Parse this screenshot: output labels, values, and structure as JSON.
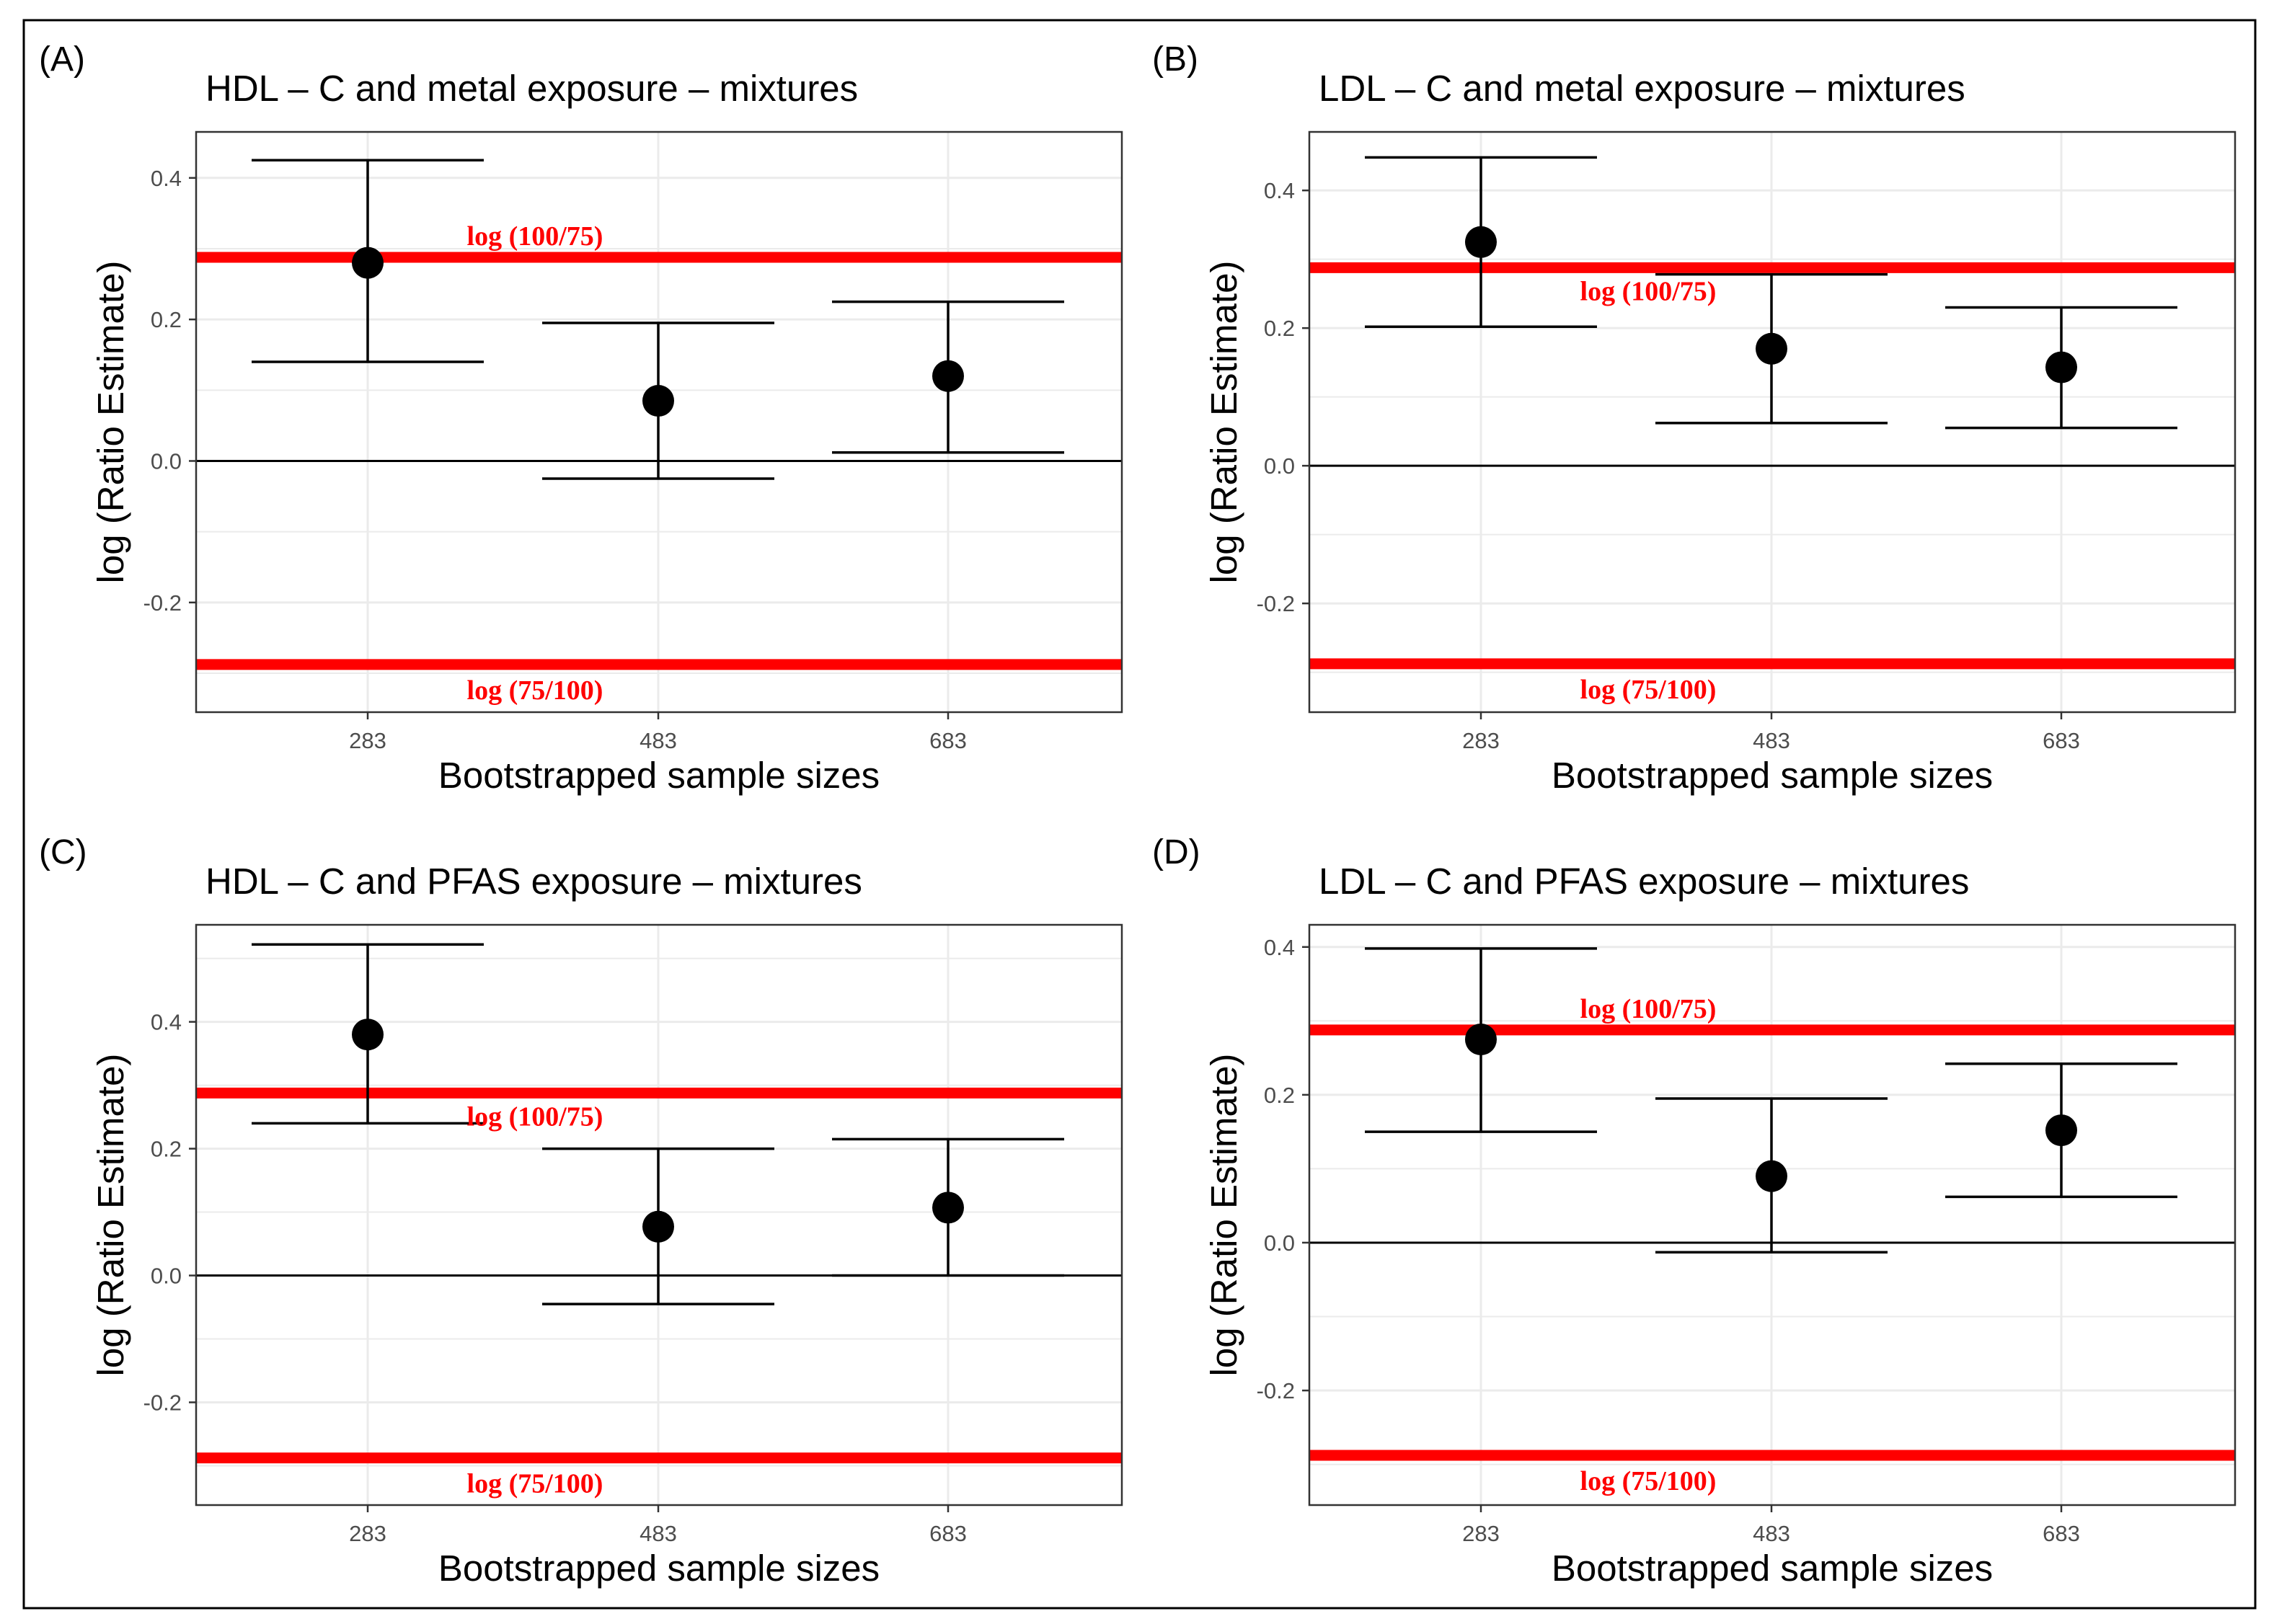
{
  "chart_data": [
    {
      "panel_label": "(A)",
      "title": "HDL – C and metal exposure – mixtures",
      "type": "scatter",
      "xlabel": "Bootstrapped sample sizes",
      "ylabel": "log (Ratio Estimate)",
      "categories": [
        "283",
        "483",
        "683"
      ],
      "estimates": [
        0.28,
        0.085,
        0.12
      ],
      "ci_lower": [
        0.14,
        -0.025,
        0.012
      ],
      "ci_upper": [
        0.425,
        0.195,
        0.225
      ],
      "yticks": [
        -0.2,
        0.0,
        0.2,
        0.4
      ],
      "ytick_labels": [
        "-0.2",
        "0.0",
        "0.2",
        "0.4"
      ],
      "ylim": [
        -0.355,
        0.465
      ],
      "upper_margin": 0.2877,
      "lower_margin": -0.2877,
      "upper_margin_label": "log (100/75)",
      "lower_margin_label": "log (75/100)",
      "upper_label_position": "above",
      "grid": true
    },
    {
      "panel_label": "(B)",
      "title": "LDL – C and metal exposure – mixtures",
      "type": "scatter",
      "xlabel": "Bootstrapped sample sizes",
      "ylabel": "log (Ratio Estimate)",
      "categories": [
        "283",
        "483",
        "683"
      ],
      "estimates": [
        0.325,
        0.17,
        0.143
      ],
      "ci_lower": [
        0.202,
        0.062,
        0.055
      ],
      "ci_upper": [
        0.448,
        0.278,
        0.23
      ],
      "yticks": [
        -0.2,
        0.0,
        0.2,
        0.4
      ],
      "ytick_labels": [
        "-0.2",
        "0.0",
        "0.2",
        "0.4"
      ],
      "ylim": [
        -0.358,
        0.485
      ],
      "upper_margin": 0.2877,
      "lower_margin": -0.2877,
      "upper_margin_label": "log (100/75)",
      "lower_margin_label": "log (75/100)",
      "upper_label_position": "below",
      "grid": true
    },
    {
      "panel_label": "(C)",
      "title": "HDL – C and PFAS exposure – mixtures",
      "type": "scatter",
      "xlabel": "Bootstrapped sample sizes",
      "ylabel": "log (Ratio Estimate)",
      "categories": [
        "283",
        "483",
        "683"
      ],
      "estimates": [
        0.38,
        0.077,
        0.107
      ],
      "ci_lower": [
        0.24,
        -0.045,
        0.0
      ],
      "ci_upper": [
        0.522,
        0.2,
        0.215
      ],
      "yticks": [
        -0.2,
        0.0,
        0.2,
        0.4
      ],
      "ytick_labels": [
        "-0.2",
        "0.0",
        "0.2",
        "0.4"
      ],
      "ylim": [
        -0.362,
        0.553
      ],
      "upper_margin": 0.2877,
      "lower_margin": -0.2877,
      "upper_margin_label": "log (100/75)",
      "lower_margin_label": "log (75/100)",
      "upper_label_position": "below",
      "grid": true
    },
    {
      "panel_label": "(D)",
      "title": "LDL – C and PFAS exposure – mixtures",
      "type": "scatter",
      "xlabel": "Bootstrapped sample sizes",
      "ylabel": "log (Ratio Estimate)",
      "categories": [
        "283",
        "483",
        "683"
      ],
      "estimates": [
        0.275,
        0.09,
        0.152
      ],
      "ci_lower": [
        0.15,
        -0.013,
        0.062
      ],
      "ci_upper": [
        0.398,
        0.195,
        0.242
      ],
      "yticks": [
        -0.2,
        0.0,
        0.2,
        0.4
      ],
      "ytick_labels": [
        "-0.2",
        "0.0",
        "0.2",
        "0.4"
      ],
      "ylim": [
        -0.355,
        0.43
      ],
      "upper_margin": 0.2877,
      "lower_margin": -0.2877,
      "upper_margin_label": "log (100/75)",
      "lower_margin_label": "log (75/100)",
      "upper_label_position": "above",
      "grid": true
    }
  ],
  "colors": {
    "equivalence_line": "#ff0000",
    "margin_label": "#ff0000",
    "point": "#000000",
    "grid": "#ebebeb",
    "axis_text": "#4d4d4d",
    "text": "#000000"
  }
}
